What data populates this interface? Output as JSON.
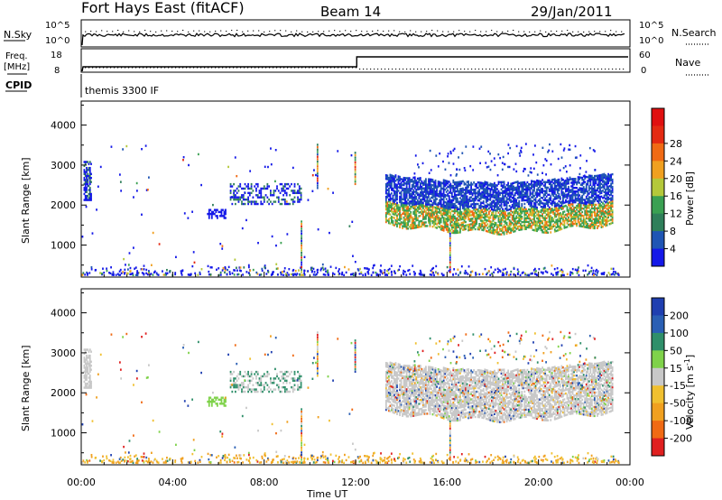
{
  "header": {
    "station": "Fort Hays East (fitACF)",
    "beam": "Beam 14",
    "date": "29/Jan/2011"
  },
  "sky_panel": {
    "left_label": "N.Sky",
    "right_label": "N.Search",
    "left_ticks": [
      "10^5",
      "10^0"
    ],
    "right_ticks": [
      "10^5",
      "10^0"
    ]
  },
  "freq_panel": {
    "left_label_line1": "Freq.",
    "left_label_line2": "[MHz]",
    "right_label": "Nave",
    "left_ticks": [
      "18",
      "8"
    ],
    "right_ticks": [
      "60",
      "0"
    ],
    "freq_before_switch": 10,
    "freq_after_switch": 15,
    "switch_time": "12:00"
  },
  "cpid": {
    "label": "CPID",
    "value": "themis 3300 IF"
  },
  "chart_data": [
    {
      "type": "heatmap",
      "name": "power",
      "ylabel": "Slant Range [km]",
      "yticks": [
        "1000",
        "2000",
        "3000",
        "4000"
      ],
      "ylim": [
        200,
        4600
      ],
      "xlim_hours": [
        0,
        24
      ],
      "colorbar_label": "Power [dB]",
      "colorbar_ticks": [
        "4",
        "8",
        "12",
        "16",
        "20",
        "24",
        "28"
      ],
      "colorbar_colors": [
        "#1418e8",
        "#1f55b4",
        "#2f7f5a",
        "#3aa052",
        "#b4c83a",
        "#f0a020",
        "#f06a14",
        "#e42a12",
        "#e01010"
      ],
      "echo_regions": [
        {
          "t_start": 0.1,
          "t_end": 0.4,
          "r_min": 2100,
          "r_max": 3100
        },
        {
          "t_start": 5.5,
          "t_end": 6.3,
          "r_min": 1650,
          "r_max": 1900
        },
        {
          "t_start": 6.5,
          "t_end": 9.6,
          "r_min": 2000,
          "r_max": 2500
        },
        {
          "t_start": 13.3,
          "t_end": 23.2,
          "r_min": 1300,
          "r_max": 2800
        }
      ]
    },
    {
      "type": "heatmap",
      "name": "velocity",
      "ylabel": "Slant Range [km]",
      "yticks": [
        "1000",
        "2000",
        "3000",
        "4000"
      ],
      "ylim": [
        200,
        4600
      ],
      "xlim_hours": [
        0,
        24
      ],
      "xticks": [
        "00:00",
        "04:00",
        "08:00",
        "12:00",
        "16:00",
        "20:00",
        "00:00"
      ],
      "xlabel": "Time UT",
      "colorbar_label": "Velocity [m s",
      "colorbar_label_sup": "-1",
      "colorbar_label_end": "]",
      "colorbar_ticks": [
        "200",
        "100",
        "50",
        "15",
        "-15",
        "-50",
        "-100",
        "-200"
      ],
      "colorbar_colors": [
        "#1f3fb0",
        "#2a5fb4",
        "#2f8f6a",
        "#7fd24a",
        "#c8c8c8",
        "#f0c030",
        "#f0a020",
        "#f06a14",
        "#e02020"
      ]
    }
  ]
}
